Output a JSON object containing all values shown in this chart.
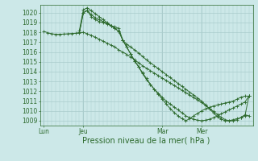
{
  "bg_color": "#cce8e8",
  "grid_color": "#aacccc",
  "line_color": "#2d6a2d",
  "marker_color": "#2d6a2d",
  "xlabel": "Pression niveau de la mer( hPa )",
  "xlabel_color": "#2d6a2d",
  "tick_color": "#2d6a2d",
  "ylim": [
    1008.5,
    1020.8
  ],
  "yticks": [
    1009,
    1010,
    1011,
    1012,
    1013,
    1014,
    1015,
    1016,
    1017,
    1018,
    1019,
    1020
  ],
  "xtick_labels": [
    "Lun",
    "Jeu",
    "Mar",
    "Mer"
  ],
  "xtick_positions": [
    0,
    10,
    30,
    40
  ],
  "vline_positions": [
    0,
    10,
    30,
    40
  ],
  "xlim": [
    -1,
    53
  ],
  "series": [
    {
      "x": [
        0,
        1,
        2,
        3,
        4,
        5,
        6,
        7,
        8,
        9,
        10,
        11,
        12,
        13,
        14,
        15,
        16,
        17,
        18,
        19,
        20,
        21,
        22,
        23,
        24,
        25,
        26,
        27,
        28,
        29,
        30,
        31,
        32,
        33,
        34,
        35,
        36,
        37,
        38,
        39,
        40,
        41,
        42,
        43,
        44,
        45,
        46,
        47,
        48,
        49,
        50,
        51,
        52
      ],
      "y": [
        1018.1,
        1017.95,
        1017.85,
        1017.8,
        1017.8,
        1017.82,
        1017.85,
        1017.88,
        1017.9,
        1017.95,
        1018.0,
        1017.85,
        1017.7,
        1017.5,
        1017.3,
        1017.1,
        1016.9,
        1016.7,
        1016.5,
        1016.2,
        1016.0,
        1015.75,
        1015.5,
        1015.2,
        1014.9,
        1014.6,
        1014.35,
        1014.1,
        1013.85,
        1013.6,
        1013.35,
        1013.1,
        1012.85,
        1012.6,
        1012.35,
        1012.1,
        1011.85,
        1011.6,
        1011.35,
        1011.1,
        1010.85,
        1010.55,
        1010.25,
        1009.95,
        1009.65,
        1009.35,
        1009.1,
        1009.0,
        1009.0,
        1009.1,
        1009.35,
        1009.6,
        1009.5
      ]
    },
    {
      "x": [
        9,
        10,
        11,
        12,
        13,
        14,
        15,
        16,
        17,
        18,
        19,
        20,
        21,
        22,
        23,
        24,
        25,
        26,
        27,
        28,
        29,
        30,
        31,
        32,
        33,
        34,
        35,
        36,
        37,
        38,
        39,
        40,
        41,
        42,
        43,
        44,
        45,
        46,
        47,
        48,
        49,
        50,
        51,
        52
      ],
      "y": [
        1018.0,
        1020.0,
        1020.2,
        1019.6,
        1019.3,
        1019.1,
        1019.0,
        1018.85,
        1018.7,
        1018.55,
        1018.4,
        1017.2,
        1016.8,
        1016.5,
        1016.2,
        1015.9,
        1015.55,
        1015.2,
        1014.9,
        1014.6,
        1014.3,
        1014.0,
        1013.7,
        1013.4,
        1013.1,
        1012.8,
        1012.5,
        1012.2,
        1011.9,
        1011.6,
        1011.3,
        1011.0,
        1010.6,
        1010.2,
        1009.8,
        1009.4,
        1009.15,
        1009.0,
        1009.0,
        1009.1,
        1009.2,
        1009.3,
        1009.5,
        1011.5
      ]
    },
    {
      "x": [
        9,
        10,
        11,
        12,
        13,
        14,
        15,
        16,
        17,
        18,
        19,
        20,
        21,
        22,
        23,
        24,
        25,
        26,
        27,
        28,
        29,
        30,
        31,
        32,
        33,
        34,
        35,
        36,
        37,
        38,
        39,
        40,
        41,
        42,
        43,
        44,
        45,
        46,
        47,
        48,
        49,
        50,
        51,
        52
      ],
      "y": [
        1018.0,
        1020.0,
        1020.25,
        1019.8,
        1019.5,
        1019.3,
        1019.1,
        1018.9,
        1018.65,
        1018.4,
        1018.1,
        1017.2,
        1016.5,
        1015.8,
        1015.1,
        1014.5,
        1013.8,
        1013.2,
        1012.7,
        1012.2,
        1011.8,
        1011.4,
        1011.0,
        1010.7,
        1010.4,
        1010.1,
        1009.8,
        1009.5,
        1009.3,
        1009.15,
        1009.05,
        1009.0,
        1009.05,
        1009.15,
        1009.3,
        1009.5,
        1009.7,
        1009.9,
        1010.1,
        1010.3,
        1010.5,
        1010.7,
        1010.9,
        1011.5
      ]
    },
    {
      "x": [
        9,
        10,
        11,
        12,
        13,
        14,
        15,
        16,
        17,
        18,
        19,
        20,
        21,
        22,
        23,
        24,
        25,
        26,
        27,
        28,
        29,
        30,
        31,
        32,
        33,
        34,
        35,
        36,
        37,
        38,
        39,
        40,
        41,
        42,
        43,
        44,
        45,
        46,
        47,
        48,
        49,
        50,
        51,
        52
      ],
      "y": [
        1018.2,
        1020.3,
        1020.5,
        1020.2,
        1019.9,
        1019.6,
        1019.3,
        1019.0,
        1018.7,
        1018.4,
        1018.1,
        1017.2,
        1016.5,
        1015.8,
        1015.1,
        1014.5,
        1013.9,
        1013.3,
        1012.7,
        1012.2,
        1011.7,
        1011.2,
        1010.7,
        1010.25,
        1009.85,
        1009.5,
        1009.2,
        1009.0,
        1009.2,
        1009.5,
        1009.75,
        1010.0,
        1010.2,
        1010.35,
        1010.5,
        1010.6,
        1010.7,
        1010.8,
        1010.9,
        1011.0,
        1011.2,
        1011.4,
        1011.5,
        1011.5
      ]
    }
  ]
}
